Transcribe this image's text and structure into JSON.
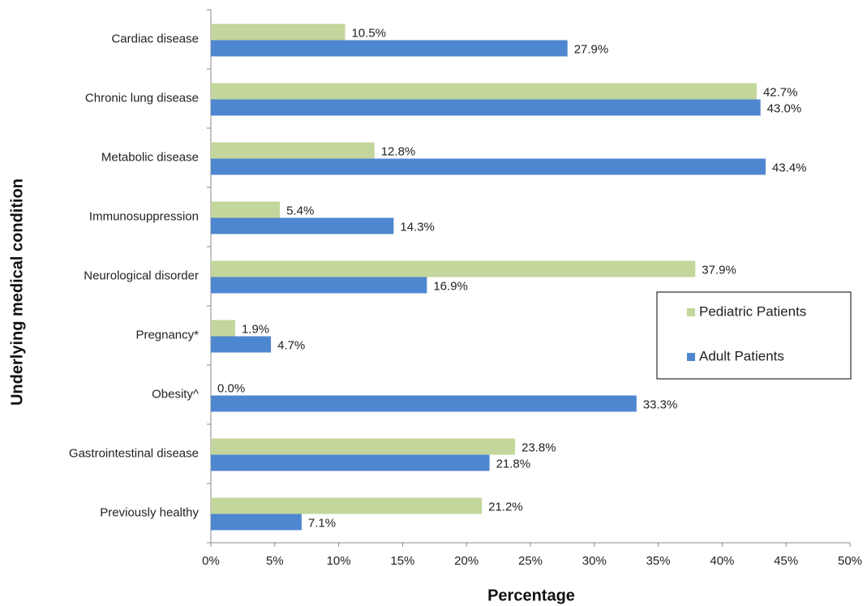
{
  "chart_data": {
    "type": "hbar",
    "x_label": "Percentage",
    "y_label": "Underlying medical condition",
    "categories": [
      "Cardiac disease",
      "Chronic lung disease",
      "Metabolic disease",
      "Immunosuppression",
      "Neurological disorder",
      "Pregnancy*",
      "Obesity^",
      "Gastrointestinal disease",
      "Previously healthy"
    ],
    "series": [
      {
        "name": "Pediatric Patients",
        "color": "#c3d69b",
        "values": [
          10.5,
          42.7,
          12.8,
          5.4,
          37.9,
          1.9,
          0.0,
          23.8,
          21.2
        ],
        "value_labels": [
          "10.5%",
          "42.7%",
          "12.8%",
          "5.4%",
          "37.9%",
          "1.9%",
          "0.0%",
          "23.8%",
          "21.2%"
        ]
      },
      {
        "name": "Adult Patients",
        "color": "#4f86d0",
        "values": [
          27.9,
          43.0,
          43.4,
          14.3,
          16.9,
          4.7,
          33.3,
          21.8,
          7.1
        ],
        "value_labels": [
          "27.9%",
          "43.0%",
          "43.4%",
          "14.3%",
          "16.9%",
          "4.7%",
          "33.3%",
          "21.8%",
          "7.1%"
        ]
      }
    ],
    "xlim": [
      0,
      50
    ],
    "xticks": [
      {
        "value": 0,
        "label": "0%"
      },
      {
        "value": 5,
        "label": "5%"
      },
      {
        "value": 10,
        "label": "10%"
      },
      {
        "value": 15,
        "label": "15%"
      },
      {
        "value": 20,
        "label": "20%"
      },
      {
        "value": 25,
        "label": "25%"
      },
      {
        "value": 30,
        "label": "30%"
      },
      {
        "value": 35,
        "label": "35%"
      },
      {
        "value": 40,
        "label": "40%"
      },
      {
        "value": 45,
        "label": "45%"
      },
      {
        "value": 50,
        "label": "50%"
      }
    ],
    "grid": false,
    "legend": "right"
  }
}
